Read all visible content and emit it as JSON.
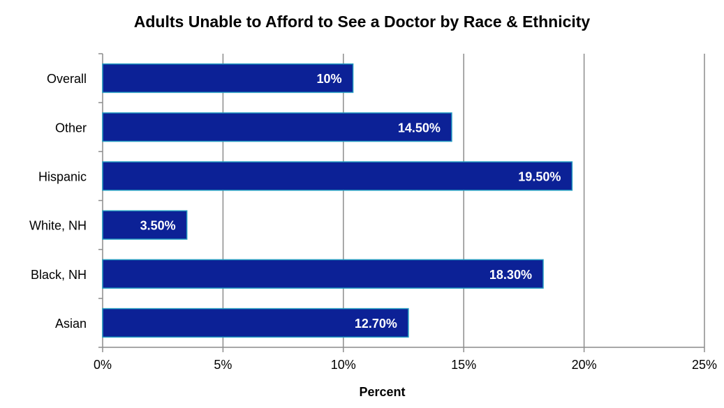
{
  "chart_data": {
    "type": "bar",
    "orientation": "horizontal",
    "title": "Adults Unable to Afford to See a Doctor by Race & Ethnicity",
    "xlabel": "Percent",
    "ylabel": "",
    "categories": [
      "Overall",
      "Other",
      "Hispanic",
      "White, NH",
      "Black, NH",
      "Asian"
    ],
    "values": [
      10.4,
      14.5,
      19.5,
      3.5,
      18.3,
      12.7
    ],
    "data_labels": [
      "10%",
      "14.50%",
      "19.50%",
      "3.50%",
      "18.30%",
      "12.70%"
    ],
    "xlim": [
      0,
      25
    ],
    "x_ticks": [
      0,
      5,
      10,
      15,
      20,
      25
    ],
    "x_tick_labels": [
      "0%",
      "5%",
      "10%",
      "15%",
      "20%",
      "25%"
    ],
    "grid": "vertical",
    "legend": "none",
    "colors": {
      "bar_fill": "#0c2196",
      "bar_stroke": "#1f97bf",
      "grid": "#8c8c8c",
      "axis": "#8c8c8c",
      "data_label": "#ffffff",
      "text": "#000000"
    }
  }
}
